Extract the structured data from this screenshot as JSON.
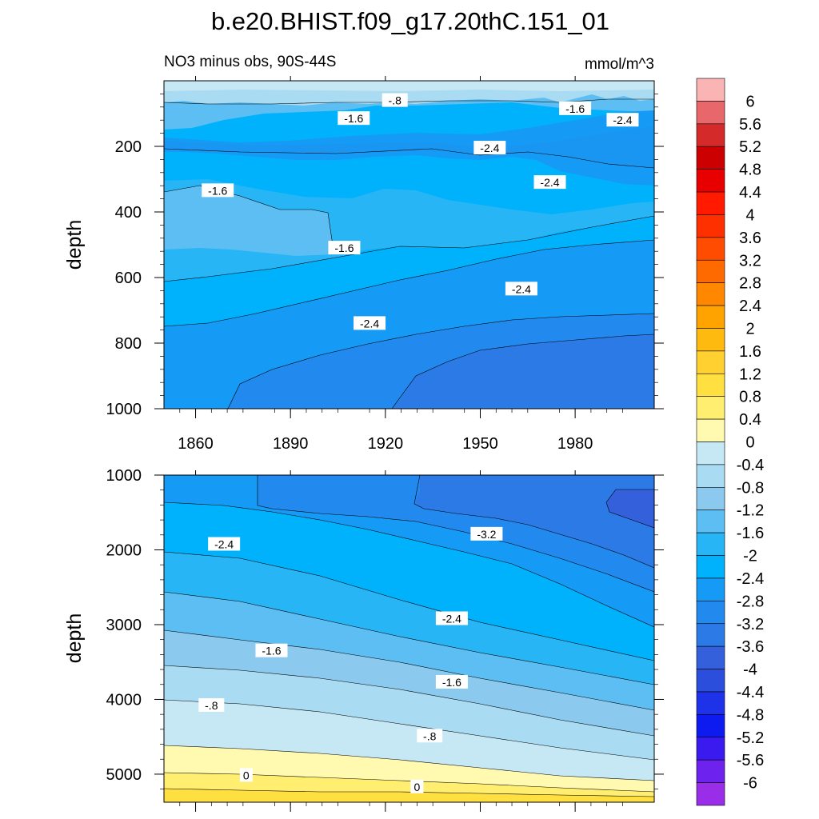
{
  "figure": {
    "title": "b.e20.BHIST.f09_g17.20thC.151_01",
    "subtitle_left": "NO3 minus obs, 90S-44S",
    "subtitle_right": "mmol/m^3"
  },
  "chart_data": [
    {
      "type": "heatmap",
      "panel": "upper",
      "ylabel": "depth",
      "xlabel": "",
      "x_ticks": [
        "1860",
        "1890",
        "1920",
        "1950",
        "1980"
      ],
      "x_tick_values": [
        1860,
        1890,
        1920,
        1950,
        1980
      ],
      "xlim": [
        1850,
        2005
      ],
      "y_ticks": [
        "200",
        "400",
        "600",
        "800",
        "1000"
      ],
      "y_tick_values": [
        200,
        400,
        600,
        800,
        1000
      ],
      "ylim": [
        0,
        1000
      ],
      "y_inverted": true,
      "contour_labels": [
        {
          "text": "-.8",
          "x": 1923,
          "y": 60
        },
        {
          "text": "-1.6",
          "x": 1910,
          "y": 115
        },
        {
          "text": "-1.6",
          "x": 1980,
          "y": 85
        },
        {
          "text": "-2.4",
          "x": 1995,
          "y": 120
        },
        {
          "text": "-2.4",
          "x": 1953,
          "y": 205
        },
        {
          "text": "-2.4",
          "x": 1972,
          "y": 310
        },
        {
          "text": "-1.6",
          "x": 1867,
          "y": 335
        },
        {
          "text": "-1.6",
          "x": 1907,
          "y": 510
        },
        {
          "text": "-2.4",
          "x": 1963,
          "y": 635
        },
        {
          "text": "-2.4",
          "x": 1915,
          "y": 740
        }
      ]
    },
    {
      "type": "heatmap",
      "panel": "lower",
      "ylabel": "depth",
      "xlabel": "",
      "x_tick_values": [
        1860,
        1890,
        1920,
        1950,
        1980
      ],
      "xlim": [
        1850,
        2005
      ],
      "y_ticks": [
        "1000",
        "2000",
        "3000",
        "4000",
        "5000"
      ],
      "y_tick_values": [
        1000,
        2000,
        3000,
        4000,
        5000
      ],
      "ylim": [
        1000,
        5375
      ],
      "y_inverted": true,
      "contour_labels": [
        {
          "text": "-3.2",
          "x": 1952,
          "y": 1790
        },
        {
          "text": "-2.4",
          "x": 1869,
          "y": 1925
        },
        {
          "text": "-2.4",
          "x": 1941,
          "y": 2920
        },
        {
          "text": "-1.6",
          "x": 1884,
          "y": 3350
        },
        {
          "text": "-1.6",
          "x": 1941,
          "y": 3770
        },
        {
          "text": "-.8",
          "x": 1865,
          "y": 4080
        },
        {
          "text": "-.8",
          "x": 1934,
          "y": 4490
        },
        {
          "text": "0",
          "x": 1876,
          "y": 5015
        },
        {
          "text": "0",
          "x": 1930,
          "y": 5170
        }
      ]
    }
  ],
  "colorbar": {
    "labels": [
      "6",
      "5.6",
      "5.2",
      "4.8",
      "4.4",
      "4",
      "3.6",
      "3.2",
      "2.8",
      "2.4",
      "2",
      "1.6",
      "1.2",
      "0.8",
      "0.4",
      "0",
      "-0.4",
      "-0.8",
      "-1.2",
      "-1.6",
      "-2",
      "-2.4",
      "-2.8",
      "-3.2",
      "-3.6",
      "-4",
      "-4.4",
      "-4.8",
      "-5.2",
      "-5.6",
      "-6"
    ],
    "colors": [
      "#fbb4b4",
      "#e8676a",
      "#d42a2a",
      "#cc0000",
      "#e80000",
      "#ff1a00",
      "#ff3000",
      "#ff4c00",
      "#ff6a00",
      "#ff8800",
      "#ffa300",
      "#ffba10",
      "#ffd030",
      "#ffe040",
      "#ffee70",
      "#fffab0",
      "#c6e7f4",
      "#a9dbf2",
      "#8bcaee",
      "#5cbef2",
      "#28b5f5",
      "#00b2fc",
      "#159bf5",
      "#2289ef",
      "#2b7ae6",
      "#3460dc",
      "#2c4edc",
      "#1e32ea",
      "#0d1af0",
      "#3a1aee",
      "#6e22ee",
      "#9a2ee8"
    ]
  }
}
